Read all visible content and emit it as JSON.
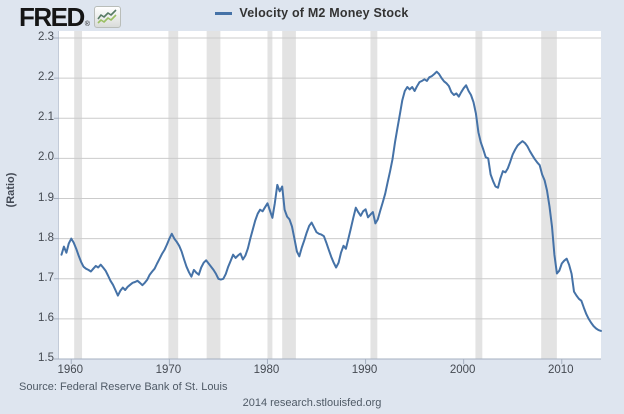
{
  "header": {
    "logo_text": "FRED",
    "logo_reg": "®",
    "legend_label": "Velocity of M2 Money Stock"
  },
  "footer": {
    "source": "Source: Federal Reserve Bank of St. Louis",
    "branding": "2014 research.stlouisfed.org"
  },
  "colors": {
    "background": "#dee5ef",
    "plot_background": "#ffffff",
    "gridline": "#cbcbcb",
    "axis_line": "#a6b0c0",
    "recession_band": "#e3e3e3",
    "series_line": "#4572a7",
    "tick_text": "#454a52",
    "logo_icon_line_dark": "#567a63",
    "logo_icon_line_light": "#9abf63"
  },
  "chart_data": {
    "type": "line",
    "title": "Velocity of M2 Money Stock",
    "xlabel": "",
    "ylabel": "(Ratio)",
    "ylim": [
      1.5,
      2.3
    ],
    "xlim": [
      1958.75,
      2014
    ],
    "grid": true,
    "legend_position": "top-center",
    "yticks": [
      2.3,
      2.2,
      2.1,
      2.0,
      1.9,
      1.8,
      1.7,
      1.6,
      1.5
    ],
    "ytick_labels": [
      "2.3",
      "2.2",
      "2.1",
      "2.0",
      "1.9",
      "1.8",
      "1.7",
      "1.6",
      "1.5"
    ],
    "xticks": [
      1960,
      1970,
      1980,
      1990,
      2000,
      2010
    ],
    "xtick_labels": [
      "1960",
      "1970",
      "1980",
      "1990",
      "2000",
      "2010"
    ],
    "recession_bands": [
      [
        1960.3,
        1961.1
      ],
      [
        1969.9,
        1970.9
      ],
      [
        1973.8,
        1975.2
      ],
      [
        1980.0,
        1980.5
      ],
      [
        1981.5,
        1982.9
      ],
      [
        1990.5,
        1991.2
      ],
      [
        2001.2,
        2001.9
      ],
      [
        2007.9,
        2009.5
      ]
    ],
    "series": [
      {
        "name": "Velocity of M2 Money Stock",
        "start_year": 1959.0,
        "step_years": 0.25,
        "values": [
          1.76,
          1.78,
          1.765,
          1.788,
          1.8,
          1.79,
          1.775,
          1.758,
          1.742,
          1.73,
          1.725,
          1.722,
          1.718,
          1.725,
          1.732,
          1.728,
          1.735,
          1.728,
          1.72,
          1.708,
          1.695,
          1.685,
          1.672,
          1.658,
          1.67,
          1.678,
          1.672,
          1.68,
          1.685,
          1.69,
          1.692,
          1.695,
          1.69,
          1.684,
          1.69,
          1.698,
          1.71,
          1.718,
          1.725,
          1.738,
          1.75,
          1.762,
          1.772,
          1.785,
          1.8,
          1.812,
          1.8,
          1.792,
          1.782,
          1.768,
          1.748,
          1.73,
          1.716,
          1.705,
          1.722,
          1.715,
          1.71,
          1.728,
          1.74,
          1.746,
          1.738,
          1.73,
          1.722,
          1.712,
          1.7,
          1.698,
          1.7,
          1.712,
          1.73,
          1.745,
          1.76,
          1.752,
          1.758,
          1.763,
          1.748,
          1.758,
          1.775,
          1.8,
          1.822,
          1.845,
          1.862,
          1.872,
          1.868,
          1.878,
          1.888,
          1.87,
          1.852,
          1.888,
          1.934,
          1.918,
          1.93,
          1.872,
          1.855,
          1.848,
          1.83,
          1.8,
          1.768,
          1.756,
          1.778,
          1.795,
          1.815,
          1.832,
          1.84,
          1.828,
          1.816,
          1.812,
          1.81,
          1.806,
          1.79,
          1.772,
          1.755,
          1.74,
          1.728,
          1.74,
          1.765,
          1.782,
          1.775,
          1.8,
          1.825,
          1.852,
          1.877,
          1.866,
          1.857,
          1.868,
          1.873,
          1.853,
          1.86,
          1.866,
          1.838,
          1.848,
          1.87,
          1.89,
          1.912,
          1.94,
          1.968,
          1.998,
          2.04,
          2.075,
          2.11,
          2.145,
          2.168,
          2.178,
          2.172,
          2.178,
          2.168,
          2.18,
          2.19,
          2.193,
          2.197,
          2.193,
          2.202,
          2.205,
          2.21,
          2.216,
          2.21,
          2.2,
          2.192,
          2.187,
          2.18,
          2.165,
          2.158,
          2.162,
          2.154,
          2.165,
          2.175,
          2.182,
          2.168,
          2.158,
          2.14,
          2.112,
          2.065,
          2.04,
          2.022,
          2.003,
          2.0,
          1.96,
          1.943,
          1.93,
          1.927,
          1.95,
          1.968,
          1.965,
          1.975,
          1.992,
          2.01,
          2.022,
          2.032,
          2.038,
          2.043,
          2.038,
          2.03,
          2.018,
          2.008,
          1.998,
          1.99,
          1.983,
          1.96,
          1.945,
          1.92,
          1.88,
          1.83,
          1.76,
          1.713,
          1.72,
          1.738,
          1.745,
          1.75,
          1.735,
          1.712,
          1.668,
          1.658,
          1.65,
          1.645,
          1.628,
          1.612,
          1.6,
          1.59,
          1.582,
          1.576,
          1.572,
          1.57
        ]
      }
    ]
  }
}
